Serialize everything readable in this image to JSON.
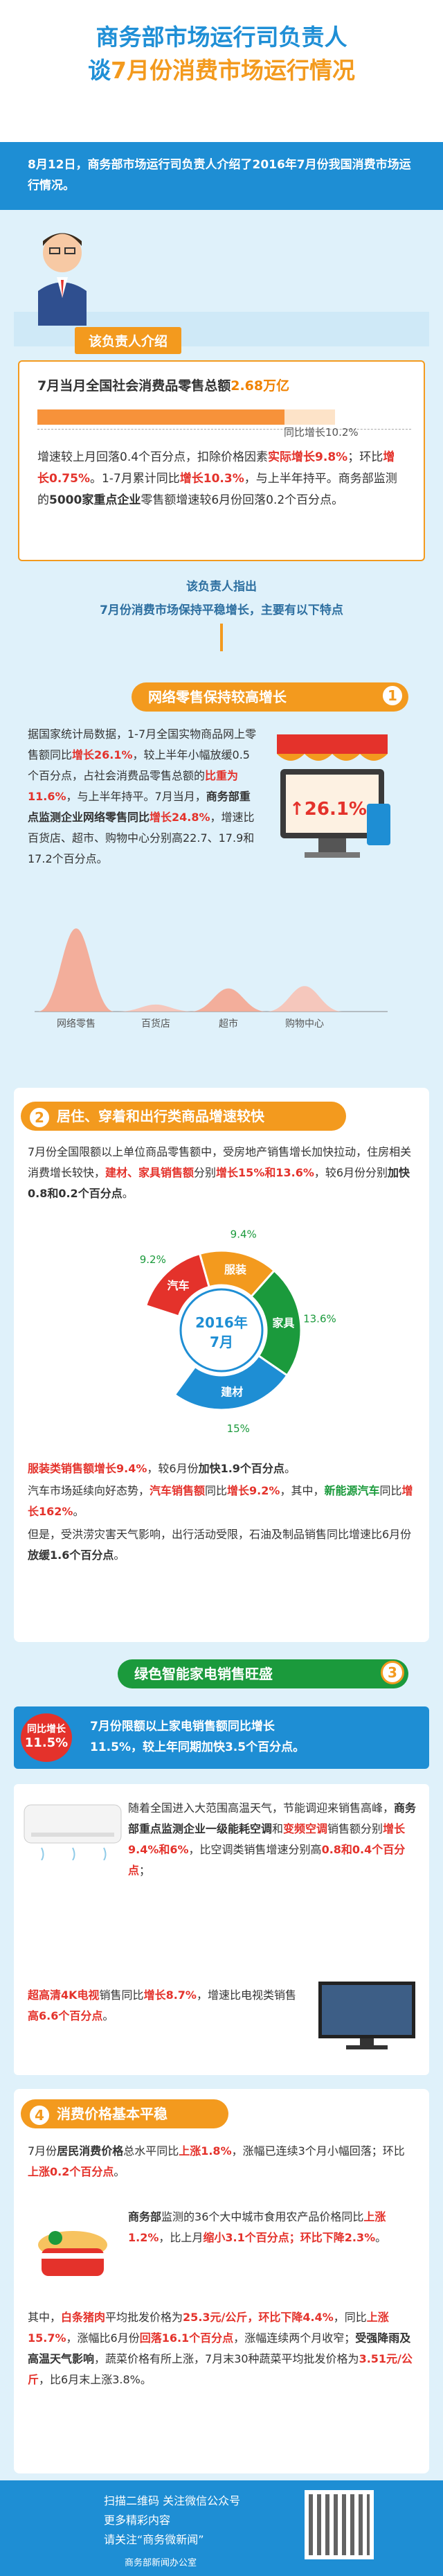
{
  "header": {
    "title_line1": "商务部市场运行司负责人",
    "title_line2_pre": "谈",
    "title_line2_hl": "7月份消费市场运行情况"
  },
  "intro": "8月12日，商务部市场运行司负责人介绍了2016年7月份我国消费市场运行情况。",
  "tag_intro": "该负责人介绍",
  "card1": {
    "heading_pre": "7月当月全国社会消费品零售总额",
    "heading_value": "2.68万亿",
    "bar_label": "同比增长10.2%",
    "bar_value_pct": 10.2,
    "para1_a": "增速较上月回落0.4个百分点，扣除价格因素",
    "para1_b": "实际增长9.8%",
    "para1_c": "；环比",
    "para1_d": "增长0.75%",
    "para1_e": "。1-7月累计同比",
    "para1_f": "增长10.3%",
    "para1_g": "，与上半年持平。商务部监测的",
    "para1_h": "5000家重点企业",
    "para1_i": "零售额增速较6月份回落0.2个百分点。"
  },
  "lead": {
    "line1": "该负责人指出",
    "line2": "7月份消费市场保持平稳增长，主要有以下特点"
  },
  "section1": {
    "num": "1",
    "title": "网络零售保持较高增长",
    "badge": "↑26.1%",
    "t1": "据国家统计局数据，1-7月全国实物商品网上零售额同比",
    "t1r": "增长26.1%",
    "t2": "，较上半年小幅放缓0.5个百分点，占社会消费品零售总额的",
    "t2r": "比重为11.6%",
    "t3": "，与上半年持平。7月当月，",
    "t3b": "商务部重点监测企业网络零售同比",
    "t3r": "增长24.8%",
    "t4": "，增速比百货店、超市、购物中心分别高22.7、17.9和17.2个百分点。",
    "categories": [
      "网络零售",
      "百货店",
      "超市",
      "购物中心"
    ]
  },
  "chart_data": {
    "type": "area",
    "categories": [
      "网络零售",
      "百货店",
      "超市",
      "购物中心"
    ],
    "values": [
      24.8,
      2.1,
      6.9,
      7.6
    ]
  },
  "section2": {
    "num": "2",
    "title": "居住、穿着和出行类商品增速较快",
    "p1a": "7月份全国限额以上单位商品零售额中，受房地产销售增长加快拉动，住房相关消费增长较快，",
    "p1b": "建材、家具销售额",
    "p1c": "分别",
    "p1d": "增长15%和13.6%",
    "p1e": "，较6月份分别",
    "p1f": "加快0.8和0.2个百分点",
    "p1g": "。",
    "donut_center1": "2016年",
    "donut_center2": "7月",
    "donut_labels": [
      {
        "name": "汽车",
        "value": "9.2%"
      },
      {
        "name": "服装",
        "value": "9.4%"
      },
      {
        "name": "家具",
        "value": "13.6%"
      },
      {
        "name": "建材",
        "value": "15%"
      }
    ],
    "p2a": "服装类销售额增长9.4%",
    "p2b": "，较6月份",
    "p2c": "加快1.9个百分点",
    "p2d": "。",
    "p3a": "汽车市场延续向好态势，",
    "p3b": "汽车销售额",
    "p3c": "同比",
    "p3d": "增长9.2%",
    "p3e": "，其中，",
    "p3f": "新能源汽车",
    "p3g": "同比",
    "p3h": "增长162%",
    "p3i": "。",
    "p4a": "但是，受洪涝灾害天气影响，出行活动受限，石油及制品销售同比增速比6月份",
    "p4b": "放缓1.6个百分点",
    "p4c": "。"
  },
  "section3": {
    "num": "3",
    "title": "绿色智能家电销售旺盛",
    "badge_top": "同比增长",
    "badge_val": "11.5%",
    "strip1": "7月份限额以上家电销售额同比增长",
    "strip2": "11.5%，较上年同期加快3.5个百分点。",
    "p1a": "随着全国进入大范围高温天气，节能调迎来销售高峰，",
    "p1b": "商务部重点监测企业一级能耗空调",
    "p1c": "和",
    "p1d": "变频空调",
    "p1e": "销售额分别",
    "p1f": "增长9.4%和6%",
    "p1g": "，比空调类销售增速分别高",
    "p1h": "0.8和0.4个百分点",
    "p1i": "；",
    "p2a": "超高清4K电视",
    "p2b": "销售同比",
    "p2c": "增长8.7%",
    "p2d": "，增速比电视类销售",
    "p2e": "高6.6个百分点",
    "p2f": "。"
  },
  "section4": {
    "num": "4",
    "title": "消费价格基本平稳",
    "p1a": "7月份",
    "p1b": "居民消费价格",
    "p1c": "总水平同比",
    "p1d": "上涨1.8%",
    "p1e": "，涨幅已连续3个月小幅回落；环比",
    "p1f": "上涨0.2个百分点",
    "p1g": "。",
    "p2a": "商务部",
    "p2b": "监测的36个大中城市食用农产品价格同比",
    "p2c": "上涨1.2%",
    "p2d": "，比上月",
    "p2e": "缩小3.1个百分点；环比下降2.3%",
    "p2f": "。",
    "p3a": "其中，",
    "p3b": "白条猪肉",
    "p3c": "平均批发价格为",
    "p3d": "25.3元/公斤，环比下降4.4%",
    "p3e": "，同比",
    "p3f": "上涨15.7%",
    "p3g": "，涨幅比6月份",
    "p3h": "回落16.1个百分点",
    "p3i": "，涨幅连续两个月收窄；",
    "p3j": "受强降雨及高温天气影响",
    "p3k": "，蔬菜价格有所上涨，7月末30种蔬菜平均批发价格为",
    "p3l": "3.51元/公斤",
    "p3m": "，比6月末上涨3.8%。"
  },
  "footer": {
    "line1": "扫描二维码 关注微信公众号",
    "line2": "更多精彩内容",
    "line3": "请关注“商务微新闻”",
    "line4": "商务部新闻办公室"
  },
  "colors": {
    "blue": "#1e8ed4",
    "orange": "#f39a1e",
    "red": "#e4322b",
    "green": "#1b9a3c"
  }
}
